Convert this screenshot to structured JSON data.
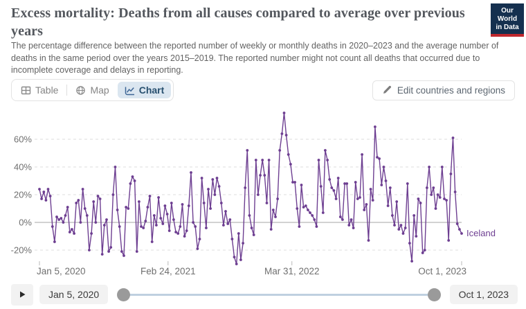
{
  "header": {
    "title": "Excess mortality: Deaths from all causes compared to average over previous years",
    "subtitle": "The percentage difference between the reported number of weekly or monthly deaths in 2020–2023 and the average number of deaths in the same period over the years 2015–2019. The reported number might not count all deaths that occurred due to incomplete coverage and delays in reporting.",
    "logo": {
      "line1": "Our World",
      "line2": "in Data"
    }
  },
  "controls": {
    "tabs": [
      {
        "label": "Table",
        "icon": "table-icon",
        "active": false
      },
      {
        "label": "Map",
        "icon": "globe-icon",
        "active": false
      },
      {
        "label": "Chart",
        "icon": "line-chart-icon",
        "active": true
      }
    ],
    "edit_button_label": "Edit countries and regions"
  },
  "timeline": {
    "play_icon": "play-icon",
    "start_label": "Jan 5, 2020",
    "end_label": "Oct 1, 2023"
  },
  "colors": {
    "brand_navy": "#15304f",
    "brand_red": "#c0282e",
    "series_purple": "#6d3e91",
    "active_tab_bg": "#dbe6f0"
  },
  "chart_data": {
    "type": "line",
    "title": "Excess mortality: Deaths from all causes compared to average over previous years",
    "unit": "%",
    "x_start": "Jan 5, 2020",
    "x_end": "Oct 1, 2023",
    "x_interval": "weekly",
    "grid": true,
    "legend": "end-of-line-label",
    "ylim": [
      -32,
      82
    ],
    "y_ticks": [
      60,
      40,
      20,
      0,
      -20
    ],
    "x_ticks": [
      {
        "label": "Jan 5, 2020",
        "week": 0
      },
      {
        "label": "Feb 24, 2021",
        "week": 59.4
      },
      {
        "label": "Mar 31, 2022",
        "week": 116.6
      },
      {
        "label": "Oct 1, 2023",
        "week": 195
      }
    ],
    "series": [
      {
        "name": "Iceland",
        "color": "#6d3e91",
        "values": [
          24,
          17,
          22,
          16,
          24,
          19,
          -3,
          -14,
          4,
          2,
          3,
          0,
          5,
          11,
          -7,
          -5,
          -8,
          14,
          16,
          0,
          24,
          10,
          5,
          -20,
          -8,
          15,
          0,
          19,
          17,
          -23,
          -2,
          2,
          -21,
          -18,
          20,
          40,
          9,
          -3,
          -21,
          -24,
          11,
          10,
          28,
          33,
          30,
          -21,
          15,
          -3,
          -4,
          1,
          11,
          19,
          -14,
          5,
          -2,
          18,
          3,
          -1,
          12,
          6,
          -6,
          14,
          2,
          -7,
          -8,
          -3,
          13,
          -10,
          -6,
          12,
          36,
          0,
          -3,
          -19,
          -12,
          32,
          14,
          -4,
          24,
          10,
          31,
          20,
          32,
          26,
          14,
          -2,
          8,
          -1,
          2,
          -12,
          -25,
          -30,
          -8,
          -27,
          -15,
          25,
          52,
          5,
          -4,
          -9,
          45,
          20,
          34,
          45,
          34,
          14,
          45,
          -5,
          9,
          4,
          17,
          52,
          64,
          79,
          63,
          49,
          42,
          29,
          29,
          10,
          -3,
          27,
          11,
          12,
          9,
          7,
          5,
          2,
          -3,
          45,
          26,
          7,
          52,
          45,
          31,
          25,
          23,
          17,
          32,
          4,
          2,
          28,
          28,
          -2,
          2,
          -4,
          29,
          17,
          18,
          49,
          9,
          13,
          -13,
          24,
          16,
          69,
          47,
          46,
          27,
          40,
          30,
          12,
          25,
          5,
          -2,
          15,
          -5,
          -2,
          -8,
          -4,
          28,
          -15,
          -28,
          5,
          -10,
          17,
          14,
          -22,
          -20,
          25,
          40,
          20,
          25,
          10,
          20,
          18,
          40,
          17,
          16,
          -13,
          35,
          61,
          22,
          -1,
          -5,
          -8
        ]
      }
    ]
  }
}
